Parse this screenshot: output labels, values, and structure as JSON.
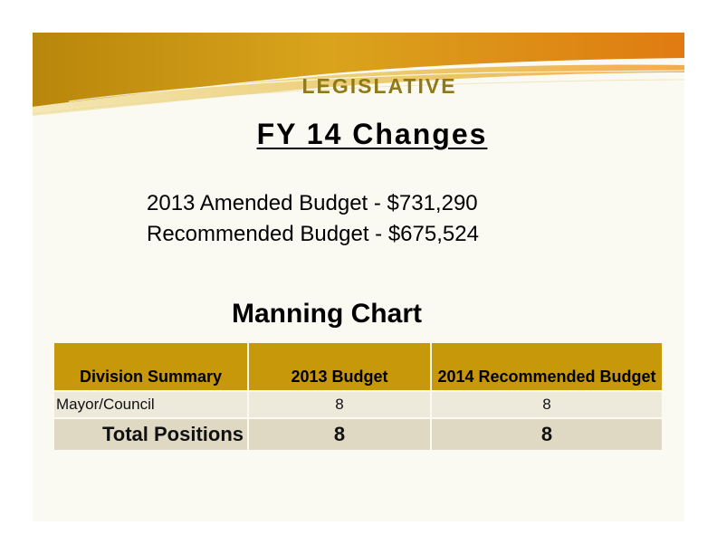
{
  "header": {
    "section_title": "LEGISLATIVE",
    "main_title": "FY 14 Changes"
  },
  "budget": {
    "line1": "2013 Amended Budget - $731,290",
    "line2": "Recommended Budget - $675,524"
  },
  "chart": {
    "heading": "Manning Chart",
    "columns": [
      "Division Summary",
      "2013 Budget",
      "2014 Recommended Budget"
    ],
    "rows": [
      {
        "division": "Mayor/Council",
        "budget_2013": "8",
        "budget_2014": "8"
      }
    ],
    "total": {
      "label": "Total Positions",
      "budget_2013": "8",
      "budget_2014": "8"
    }
  },
  "colors": {
    "header_gold": "#c6980a",
    "title_gold": "#8f7a17",
    "row_beige": "#eeeadb",
    "total_beige": "#dfd8c2",
    "background": "#fbfaf2"
  }
}
